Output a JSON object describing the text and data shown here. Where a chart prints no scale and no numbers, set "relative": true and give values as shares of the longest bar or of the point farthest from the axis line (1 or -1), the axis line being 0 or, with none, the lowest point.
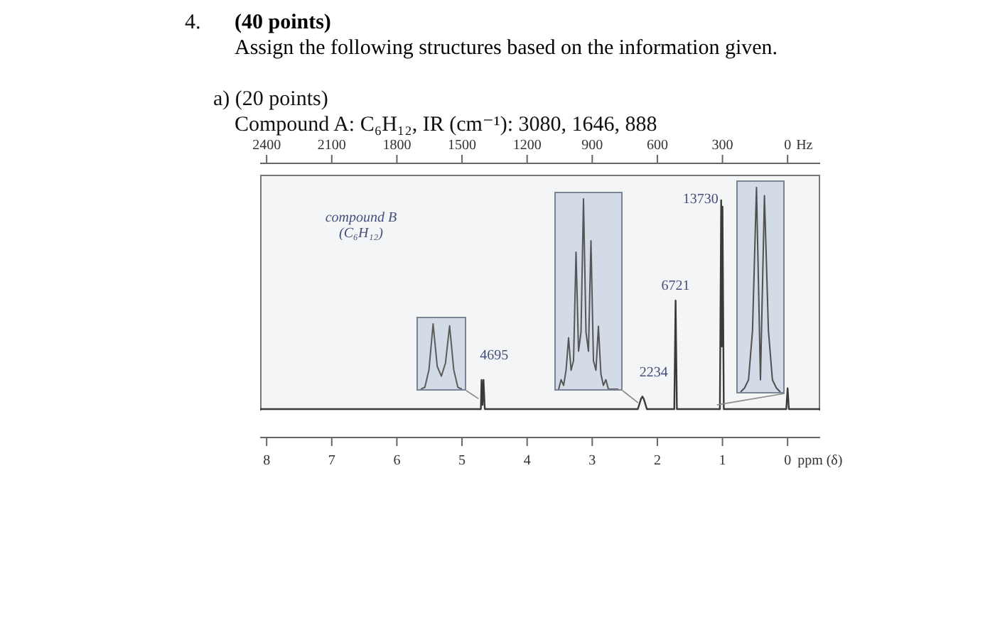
{
  "chart_data": [
    {
      "type": "line",
      "title": "(40 points)",
      "subtitle": "Assign the following structures based on the information given.",
      "xlabel": "ppm (δ)",
      "x2label": "Hz",
      "relative": true,
      "marker": "none",
      "color": "#3a3a3a",
      "annotations": [
        "4.",
        "a) (20 points)",
        "Compound A: C₆H₁₂, IR (cm⁻¹): 3080, 1646, 888",
        "compound B (C₆H₁₂)",
        {
          "text": "4695",
          "x": 4.68,
          "y": 0.14
        },
        {
          "text": "2234",
          "x": 2.23,
          "y": 0.06
        },
        {
          "text": "6721",
          "x": 1.72,
          "y": 0.52
        },
        {
          "text": "13730",
          "x": 1.02,
          "y": 1.0
        }
      ],
      "x": [
        8.1,
        4.75,
        4.71,
        4.7,
        4.685,
        4.67,
        4.65,
        2.3,
        2.27,
        2.25,
        2.23,
        2.21,
        2.19,
        2.16,
        1.74,
        1.72,
        1.7,
        1.04,
        1.02,
        1.01,
        1.0,
        0.98,
        0.02,
        0,
        -0.02,
        -0.5
      ],
      "values": [
        0,
        0,
        0,
        0.14,
        0.02,
        0.14,
        0,
        0,
        0.03,
        0.05,
        0.06,
        0.05,
        0.03,
        0,
        0,
        0.52,
        0,
        0,
        1.0,
        0.3,
        0.97,
        0,
        0,
        0.1,
        0,
        0
      ],
      "xlim": [
        8.1,
        -0.5
      ],
      "xticks": [
        8,
        7,
        6,
        5,
        4,
        3,
        2,
        1,
        0
      ],
      "x2lim": [
        2430,
        -150
      ],
      "x2ticks": [
        2400,
        2100,
        1800,
        1500,
        1200,
        900,
        600,
        300,
        0
      ]
    },
    {
      "type": "line",
      "relative": true,
      "color": "#5c5c5c",
      "categories": [
        null,
        null,
        null,
        null,
        null,
        null,
        null,
        null,
        null,
        null,
        null
      ],
      "values": [
        0,
        0.03,
        0.3,
        1.0,
        0.35,
        0.2,
        0.4,
        0.97,
        0.3,
        0.03,
        0
      ]
    },
    {
      "type": "line",
      "relative": true,
      "color": "#565656",
      "categories": [
        null,
        null,
        null,
        null,
        null,
        null,
        null,
        null,
        null,
        null,
        null,
        null,
        null,
        null,
        null,
        null,
        null,
        null,
        null,
        null,
        null,
        null,
        null,
        null,
        null
      ],
      "values": [
        0,
        0.05,
        0.02,
        0.1,
        0.27,
        0.1,
        0.15,
        0.72,
        0.2,
        0.3,
        1.0,
        0.3,
        0.2,
        0.78,
        0.15,
        0.1,
        0.33,
        0.08,
        0.02,
        0.05,
        0,
        0,
        0,
        0,
        0
      ]
    },
    {
      "type": "line",
      "relative": true,
      "color": "#505050",
      "categories": [
        null,
        null,
        null,
        null,
        null,
        null,
        null,
        null,
        null,
        null,
        null
      ],
      "values": [
        0,
        0.02,
        0.06,
        0.3,
        1.0,
        0.06,
        0.96,
        0.3,
        0.06,
        0.02,
        0
      ]
    }
  ]
}
